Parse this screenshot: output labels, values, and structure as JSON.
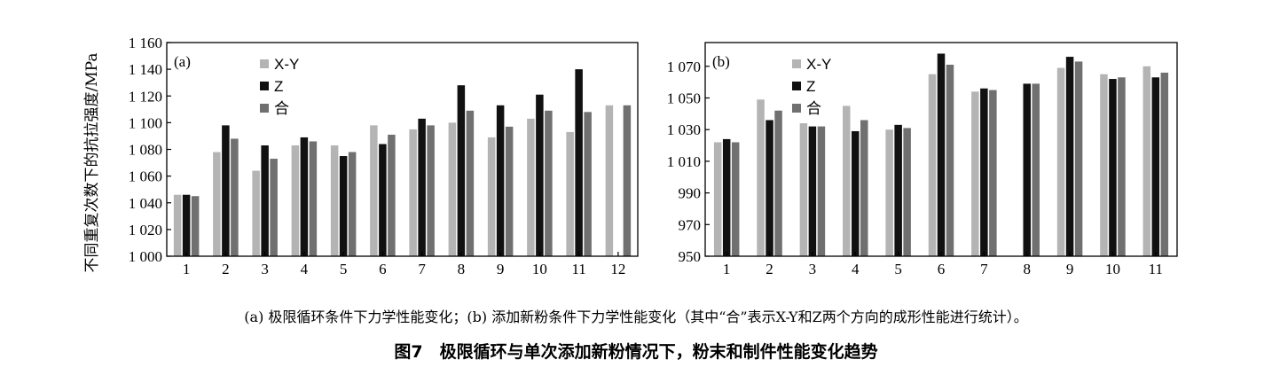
{
  "figure": {
    "caption": "(a) 极限循环条件下力学性能变化；(b) 添加新粉条件下力学性能变化（其中“合”表示X-Y和Z两个方向的成形性能进行统计）。",
    "title": "图7　极限循环与单次添加新粉情况下，粉末和制件性能变化趋势"
  },
  "colors": {
    "XY": "#b4b4b4",
    "Z": "#111111",
    "He": "#707070"
  },
  "chart_data": [
    {
      "type": "bar",
      "panel_label": "(a)",
      "ylabel": "不同重复次数下的抗拉强度/MPa",
      "xlabel": "",
      "ylim": [
        1000,
        1160
      ],
      "yticks": [
        1000,
        1020,
        1040,
        1060,
        1080,
        1100,
        1120,
        1140,
        1160
      ],
      "ytick_labels": [
        "1 000",
        "1 020",
        "1 040",
        "1 060",
        "1 080",
        "1 100",
        "1 120",
        "1 140",
        "1 160"
      ],
      "categories": [
        "1",
        "2",
        "3",
        "4",
        "5",
        "6",
        "7",
        "8",
        "9",
        "10",
        "11",
        "12"
      ],
      "legend": [
        "X-Y",
        "Z",
        "合"
      ],
      "series": [
        {
          "name": "X-Y",
          "values": [
            1046,
            1078,
            1064,
            1083,
            1083,
            1098,
            1095,
            1100,
            1089,
            1103,
            1093,
            1113
          ]
        },
        {
          "name": "Z",
          "values": [
            1046,
            1098,
            1083,
            1089,
            1075,
            1084,
            1103,
            1128,
            1113,
            1121,
            1140,
            null
          ]
        },
        {
          "name": "合",
          "values": [
            1045,
            1088,
            1073,
            1086,
            1078,
            1091,
            1098,
            1109,
            1097,
            1109,
            1108,
            1113
          ]
        }
      ]
    },
    {
      "type": "bar",
      "panel_label": "(b)",
      "ylabel": "",
      "xlabel": "",
      "ylim": [
        950,
        1085
      ],
      "yticks": [
        950,
        970,
        990,
        1010,
        1030,
        1050,
        1070
      ],
      "ytick_labels": [
        "950",
        "970",
        "990",
        "1 010",
        "1 030",
        "1 050",
        "1 070"
      ],
      "categories": [
        "1",
        "2",
        "3",
        "4",
        "5",
        "6",
        "7",
        "8",
        "9",
        "10",
        "11"
      ],
      "legend": [
        "X-Y",
        "Z",
        "合"
      ],
      "series": [
        {
          "name": "X-Y",
          "values": [
            1022,
            1049,
            1034,
            1045,
            1030,
            1065,
            1054,
            null,
            1069,
            1065,
            1070
          ]
        },
        {
          "name": "Z",
          "values": [
            1024,
            1036,
            1032,
            1029,
            1033,
            1078,
            1056,
            1059,
            1076,
            1062,
            1063
          ]
        },
        {
          "name": "合",
          "values": [
            1022,
            1042,
            1032,
            1036,
            1031,
            1071,
            1055,
            1059,
            1073,
            1063,
            1066
          ]
        }
      ]
    }
  ]
}
